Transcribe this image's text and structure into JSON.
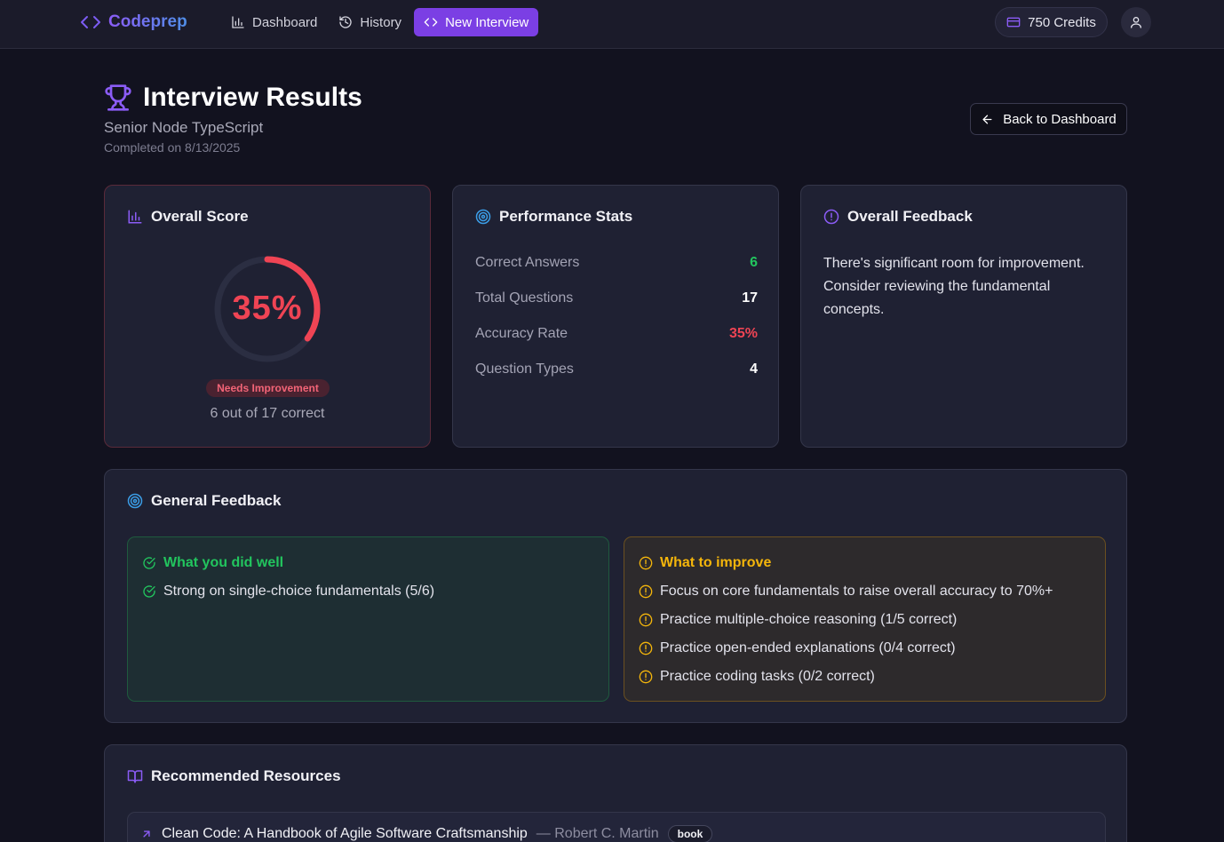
{
  "nav": {
    "brand": "Codeprep",
    "links": [
      {
        "label": "Dashboard",
        "icon": "bar-chart-icon"
      },
      {
        "label": "History",
        "icon": "history-icon"
      },
      {
        "label": "New Interview",
        "icon": "code-icon",
        "active": true
      }
    ],
    "credits": "750 Credits"
  },
  "header": {
    "title": "Interview Results",
    "subtitle": "Senior Node TypeScript",
    "completed": "Completed on 8/13/2025",
    "back_label": "Back to Dashboard"
  },
  "score": {
    "title": "Overall Score",
    "percent_label": "35%",
    "fraction": 0.35,
    "badge": "Needs Improvement",
    "summary": "6 out of 17 correct",
    "color": "#ef4454"
  },
  "stats": {
    "title": "Performance Stats",
    "rows": [
      {
        "label": "Correct Answers",
        "value": "6"
      },
      {
        "label": "Total Questions",
        "value": "17"
      },
      {
        "label": "Accuracy Rate",
        "value": "35%"
      },
      {
        "label": "Question Types",
        "value": "4"
      }
    ]
  },
  "overall_feedback": {
    "title": "Overall Feedback",
    "text": "There's significant room for improvement. Consider reviewing the fundamental concepts."
  },
  "general_feedback": {
    "title": "General Feedback",
    "well": {
      "title": "What you did well",
      "items": [
        "Strong on single-choice fundamentals (5/6)"
      ]
    },
    "improve": {
      "title": "What to improve",
      "items": [
        "Focus on core fundamentals to raise overall accuracy to 70%+",
        "Practice multiple-choice reasoning (1/5 correct)",
        "Practice open-ended explanations (0/4 correct)",
        "Practice coding tasks (0/2 correct)"
      ]
    }
  },
  "resources": {
    "title": "Recommended Resources",
    "items": [
      {
        "title": "Clean Code: A Handbook of Agile Software Craftsmanship",
        "author": "— Robert C. Martin",
        "type": "book"
      }
    ]
  },
  "colors": {
    "accent": "#7b3fe4",
    "success": "#22c55e",
    "warning": "#f5b60b",
    "danger": "#ef4454"
  }
}
